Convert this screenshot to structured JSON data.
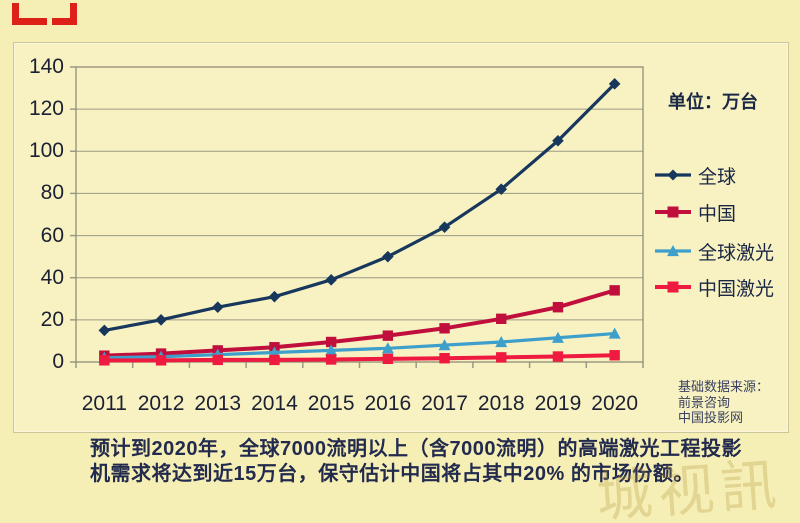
{
  "chart_data": {
    "type": "line",
    "title": "",
    "unit_label": "单位：万台",
    "x": [
      "2011",
      "2012",
      "2013",
      "2014",
      "2015",
      "2016",
      "2017",
      "2018",
      "2019",
      "2020"
    ],
    "y_ticks": [
      0,
      20,
      40,
      60,
      80,
      100,
      120,
      140
    ],
    "ylim": [
      0,
      140
    ],
    "grid": true,
    "legend_position": "right",
    "series": [
      {
        "name": "全球",
        "marker": "diamond",
        "color": "#17375D",
        "width": 3.2,
        "values": [
          15,
          20,
          26,
          31,
          39,
          50,
          64,
          82,
          105,
          132
        ]
      },
      {
        "name": "中国",
        "marker": "square",
        "color": "#C00F3C",
        "width": 4,
        "values": [
          3,
          4,
          5.5,
          7,
          9.5,
          12.5,
          16,
          20.5,
          26,
          34
        ]
      },
      {
        "name": "全球激光",
        "marker": "triangle",
        "color": "#3F9FCB",
        "width": 3.2,
        "values": [
          2,
          2.5,
          3.5,
          4.5,
          5.5,
          6.5,
          8,
          9.5,
          11.5,
          13.5
        ]
      },
      {
        "name": "中国激光",
        "marker": "square",
        "color": "#EE1A3F",
        "width": 4,
        "values": [
          0.8,
          0.8,
          1,
          1,
          1.2,
          1.5,
          1.8,
          2.2,
          2.6,
          3.2
        ]
      }
    ]
  },
  "source": {
    "line1": "基础数据来源：",
    "line2": "前景咨询",
    "line3": "中国投影网"
  },
  "caption": {
    "line1": "预计到2020年，全球7000流明以上（含7000流明）的高端激光工程投影",
    "line2": "机需求将达到近15万台，保守估计中国将占其中20% 的市场份额。"
  },
  "watermark": "城视訊",
  "colors": {
    "background": "#F6EFB5",
    "panel": "#F8F2C2",
    "grid": "#9B9A85",
    "text": "#1A2744",
    "corner_mark": "#DD2018"
  }
}
